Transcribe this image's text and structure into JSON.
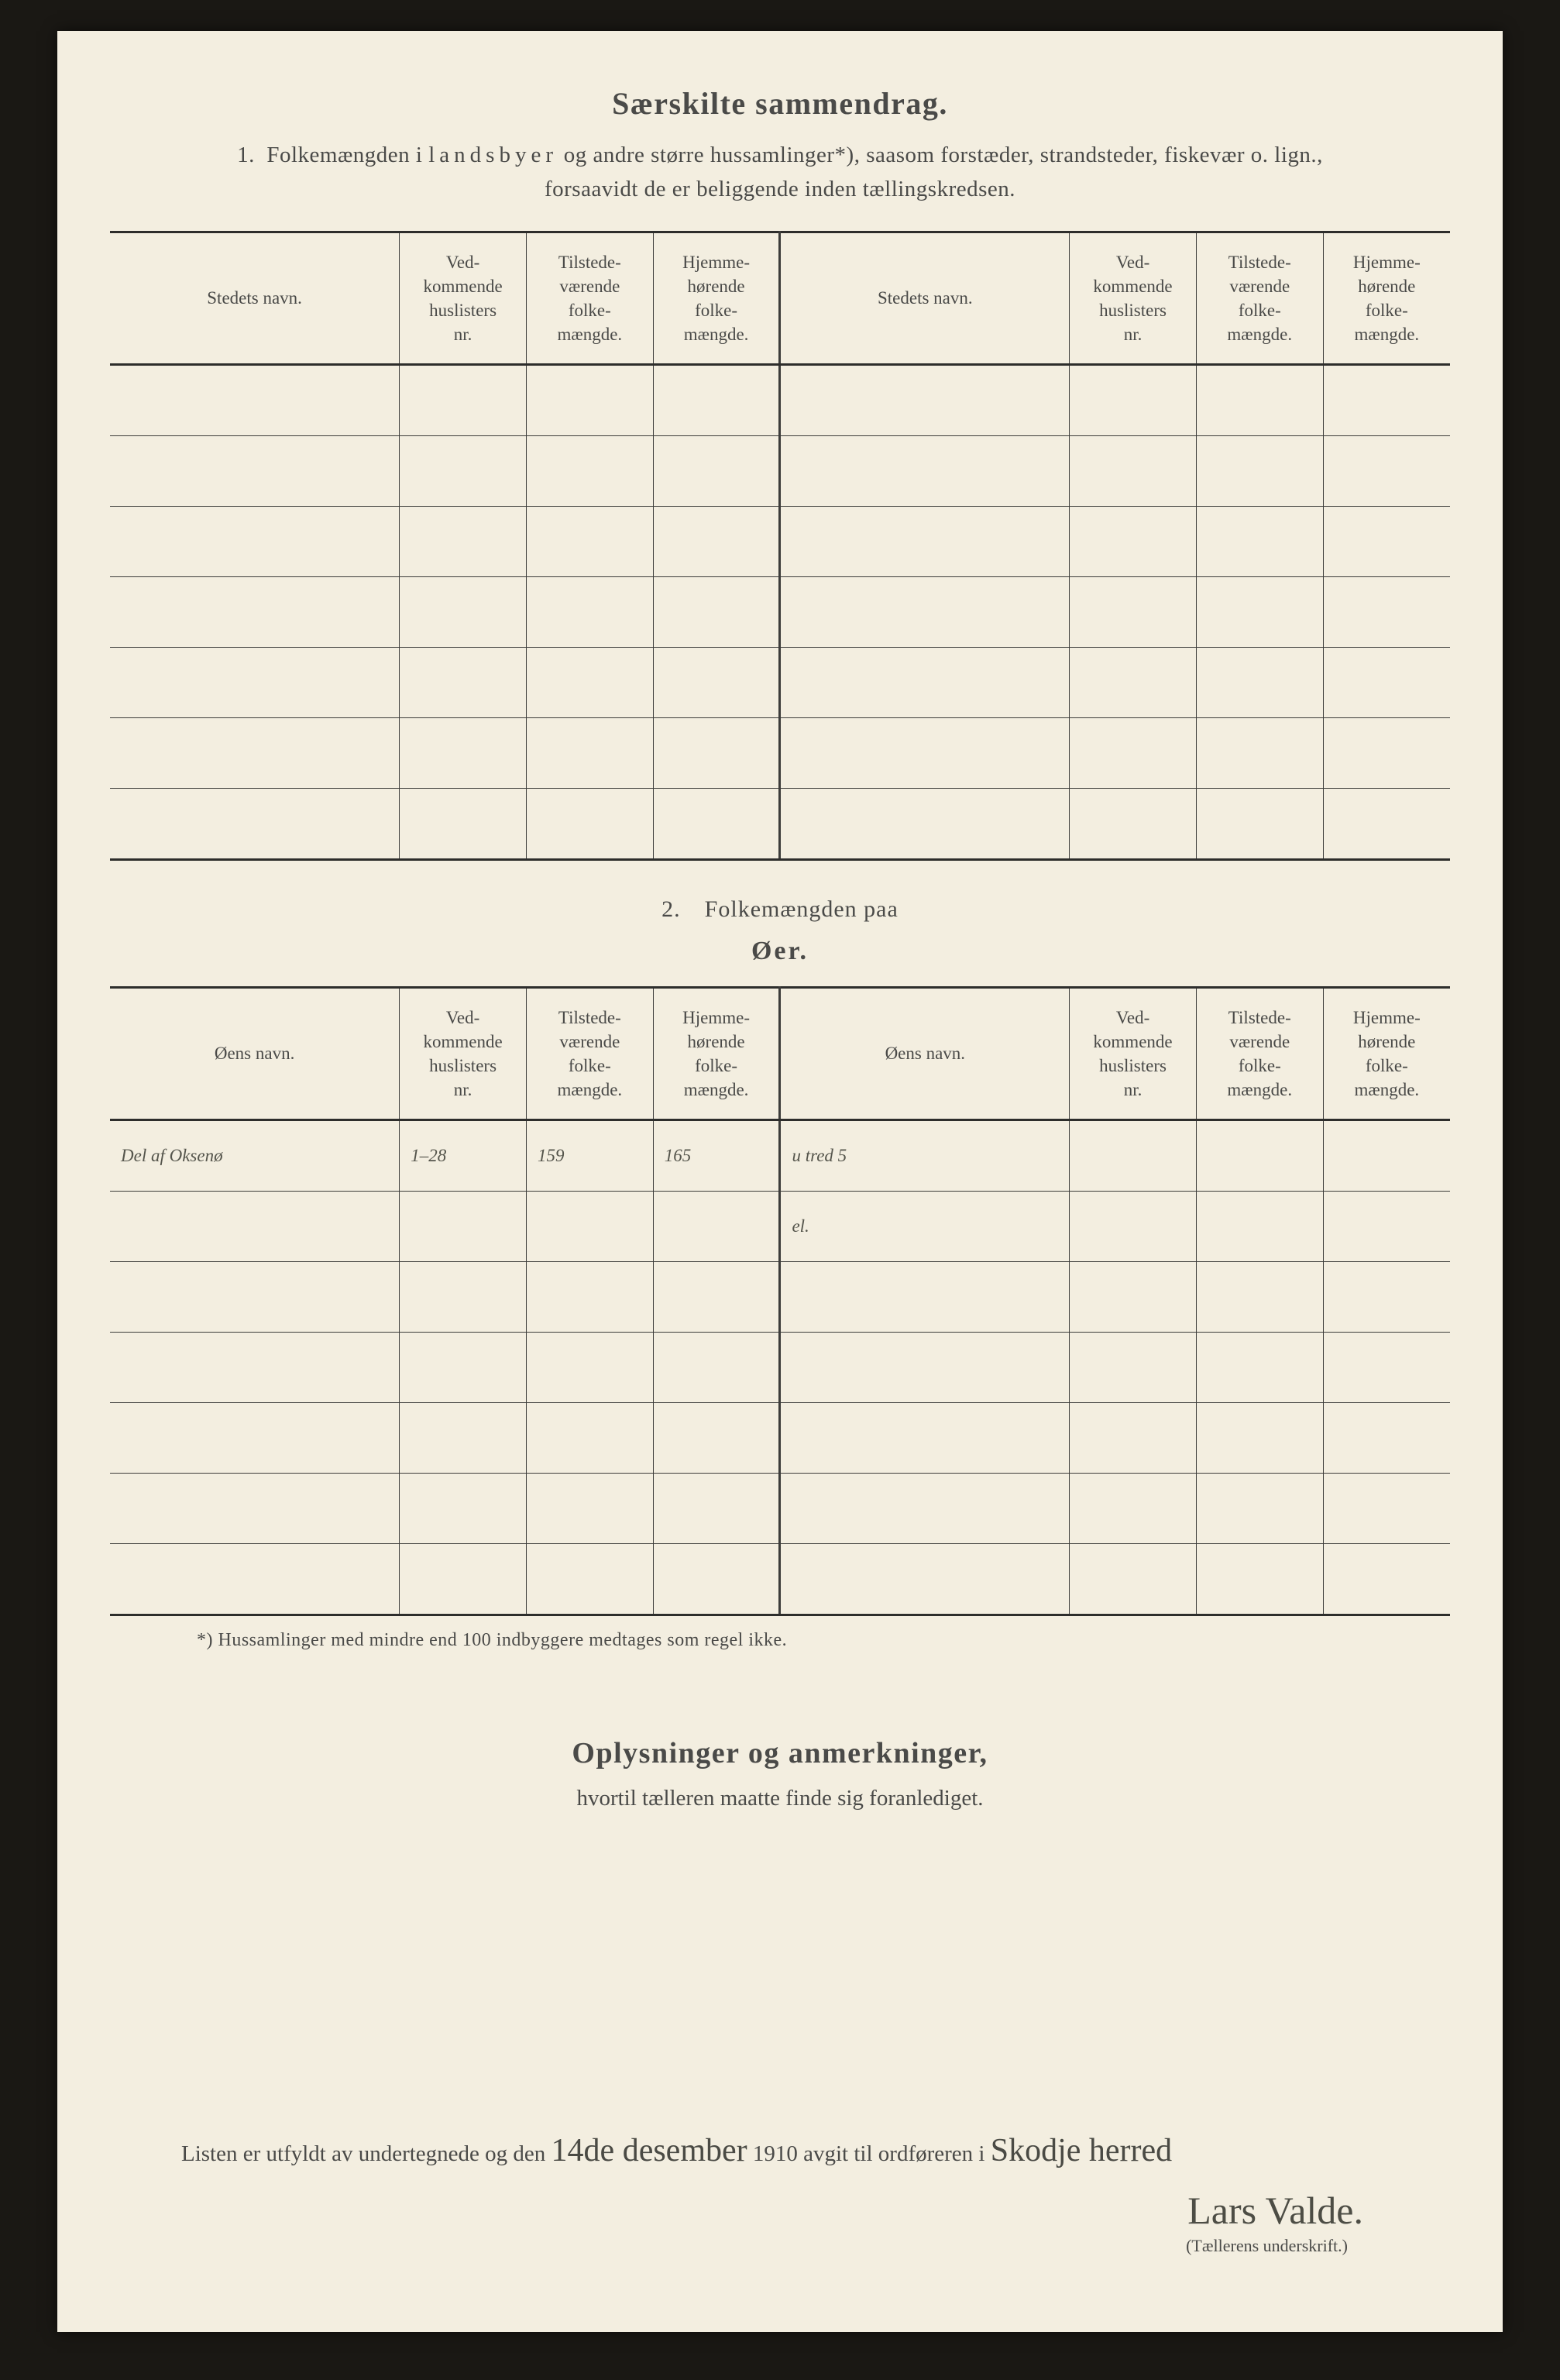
{
  "title": "Særskilte sammendrag.",
  "intro_num": "1.",
  "intro_a": "Folkemængden i ",
  "intro_spaced": "landsbyer",
  "intro_b": " og andre større hussamlinger*), saasom forstæder, strandsteder, fiskevær o. lign.,",
  "intro_line2": "forsaavidt de er beliggende inden tællingskredsen.",
  "headers": {
    "name1": "Stedets navn.",
    "name2": "Øens navn.",
    "h_husl": "Ved-\nkommende\nhuslisters\nnr.",
    "h_tilst": "Tilstede-\nværende\nfolke-\nmængde.",
    "h_hjem": "Hjemme-\nhørende\nfolke-\nmængde."
  },
  "section2_line1": "2. Folkemængden paa",
  "section2_line2": "Øer.",
  "row": {
    "name": "Del af Oksenø",
    "husl": "1–28",
    "tilst": "159",
    "hjem": "165",
    "right_name": "u tred 5",
    "right_l2": "el."
  },
  "footnote": "*)  Hussamlinger med mindre end 100 indbyggere medtages som regel ikke.",
  "oplys_head": "Oplysninger og anmerkninger,",
  "oplys_sub": "hvortil tælleren maatte finde sig foranlediget.",
  "sig": {
    "pre": "Listen er utfyldt av undertegnede og den ",
    "date": "14de desember",
    "mid": " 1910 avgit til ordføreren i ",
    "place": "Skodje herred",
    "name": "Lars Valde.",
    "caption": "(Tællerens underskrift.)"
  },
  "table1_rows": 7,
  "table2_rows": 7
}
